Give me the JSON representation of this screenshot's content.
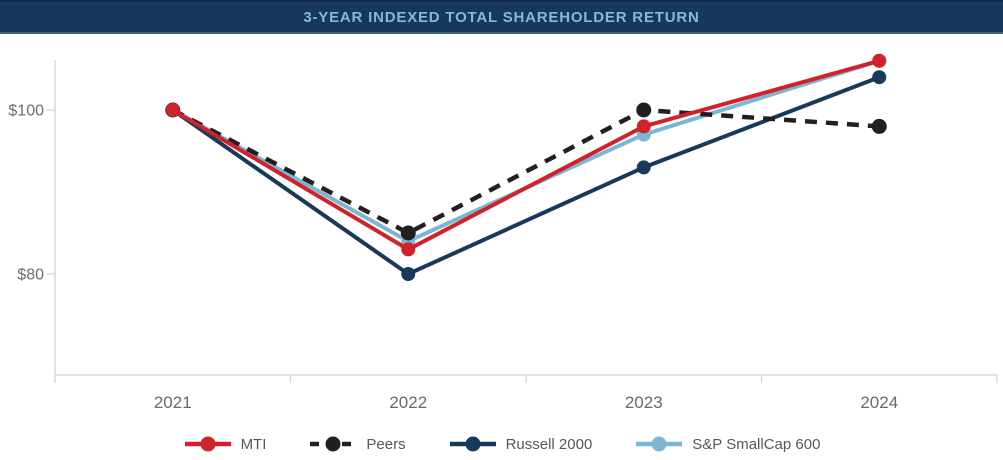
{
  "header": {
    "title": "3-YEAR INDEXED TOTAL SHAREHOLDER RETURN",
    "bg_color": "#16395b",
    "title_color": "#82badb"
  },
  "chart_data": {
    "type": "line",
    "title": "3-YEAR INDEXED TOTAL SHAREHOLDER RETURN",
    "categories": [
      "2021",
      "2022",
      "2023",
      "2024"
    ],
    "series": [
      {
        "name": "MTI",
        "color": "#d1222b",
        "style": "solid",
        "marker": "circle",
        "values": [
          100,
          83,
          98,
          106
        ]
      },
      {
        "name": "Peers",
        "color": "#231f20",
        "style": "dashed",
        "marker": "circle",
        "values": [
          100,
          85,
          100,
          98
        ]
      },
      {
        "name": "Russell 2000",
        "color": "#17395c",
        "style": "solid",
        "marker": "circle",
        "values": [
          100,
          80,
          93,
          104
        ]
      },
      {
        "name": "S&P SmallCap 600",
        "color": "#79b7d4",
        "style": "solid",
        "marker": "circle",
        "values": [
          100,
          84,
          97,
          106
        ]
      }
    ],
    "draw_order": [
      "Russell 2000",
      "S&P SmallCap 600",
      "Peers",
      "MTI"
    ],
    "y_axis": {
      "ticks": [
        {
          "label": "$100",
          "value": 100
        },
        {
          "label": "$80",
          "value": 80
        }
      ],
      "range": [
        66.5,
        106.5
      ],
      "label_color": "#6b6b6b"
    },
    "x_axis": {
      "label_color": "#6a6a6a"
    },
    "axis_color": "#d9d9d9",
    "grid": false,
    "legend": {
      "position": "bottom",
      "text_color": "#58585a"
    }
  }
}
